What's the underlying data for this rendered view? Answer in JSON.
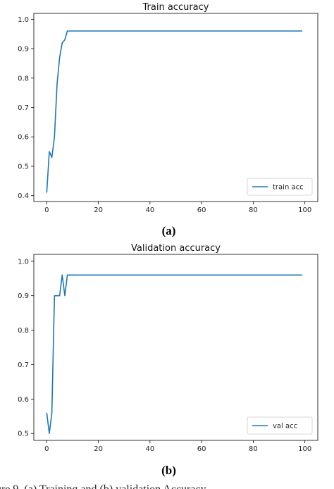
{
  "chart_data": [
    {
      "type": "line",
      "title": "Train accuracy",
      "panel_label": "(a)",
      "xlabel": "",
      "ylabel": "",
      "xlim": [
        -5,
        105
      ],
      "ylim": [
        0.38,
        1.02
      ],
      "xticks": [
        "0",
        "20",
        "40",
        "60",
        "80",
        "100"
      ],
      "yticks": [
        "0.4",
        "0.5",
        "0.6",
        "0.7",
        "0.8",
        "0.9",
        "1.0"
      ],
      "legend_position": "bottom-right",
      "color": "#1f77b4",
      "series": [
        {
          "name": "train acc",
          "x": [
            0,
            1,
            2,
            3,
            4,
            5,
            6,
            7,
            8,
            9,
            99
          ],
          "y": [
            0.41,
            0.55,
            0.53,
            0.6,
            0.78,
            0.87,
            0.92,
            0.93,
            0.96,
            0.96,
            0.96
          ]
        }
      ]
    },
    {
      "type": "line",
      "title": "Validation accuracy",
      "panel_label": "(b)",
      "xlabel": "",
      "ylabel": "",
      "xlim": [
        -5,
        105
      ],
      "ylim": [
        0.48,
        1.02
      ],
      "xticks": [
        "0",
        "20",
        "40",
        "60",
        "80",
        "100"
      ],
      "yticks": [
        "0.5",
        "0.6",
        "0.7",
        "0.8",
        "0.9",
        "1.0"
      ],
      "legend_position": "bottom-right",
      "color": "#1f77b4",
      "series": [
        {
          "name": "val acc",
          "x": [
            0,
            1,
            2,
            3,
            4,
            5,
            6,
            7,
            8,
            99
          ],
          "y": [
            0.56,
            0.5,
            0.56,
            0.9,
            0.9,
            0.9,
            0.96,
            0.9,
            0.96,
            0.96
          ]
        }
      ]
    }
  ],
  "caption": "ure 9. (a) Training and (b) validation Accuracy"
}
